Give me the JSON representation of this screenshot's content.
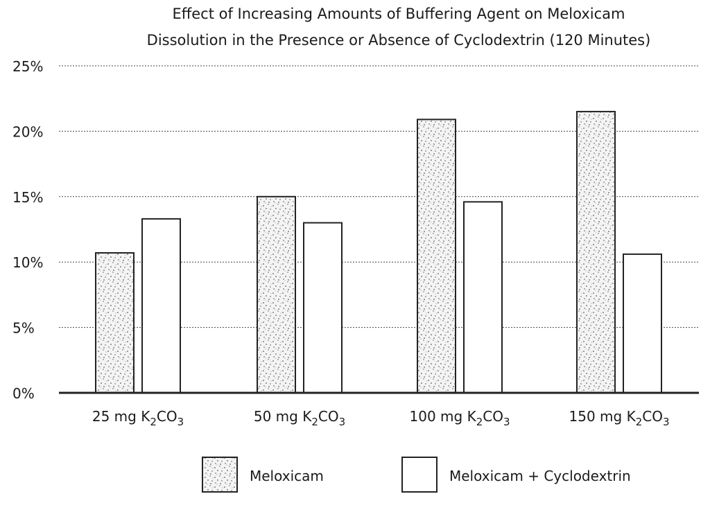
{
  "chart_data": {
    "type": "bar",
    "title": "Effect of Increasing Amounts of Buffering Agent on Meloxicam Dissolution in the Presence or Absence of Cyclodextrin (120 Minutes)",
    "title_lines": [
      "Effect of Increasing Amounts of Buffering Agent on Meloxicam",
      "Dissolution in the Presence or Absence of Cyclodextrin (120 Minutes)"
    ],
    "categories": [
      {
        "pre": "25 mg K",
        "sub1": "2",
        "mid": "CO",
        "sub2": "3"
      },
      {
        "pre": "50 mg K",
        "sub1": "2",
        "mid": "CO",
        "sub2": "3"
      },
      {
        "pre": "100 mg K",
        "sub1": "2",
        "mid": "CO",
        "sub2": "3"
      },
      {
        "pre": "150 mg K",
        "sub1": "2",
        "mid": "CO",
        "sub2": "3"
      }
    ],
    "series": [
      {
        "name": "Meloxicam",
        "pattern": "stipple",
        "values": [
          10.7,
          15.0,
          20.9,
          21.5
        ]
      },
      {
        "name": "Meloxicam + Cyclodextrin",
        "pattern": "solid-white",
        "values": [
          13.3,
          13.0,
          14.6,
          10.6
        ]
      }
    ],
    "yticks": [
      "0%",
      "5%",
      "10%",
      "15%",
      "20%",
      "25%"
    ],
    "ytick_values": [
      0,
      5,
      10,
      15,
      20,
      25
    ],
    "ylim": [
      0,
      25
    ],
    "xlabel": "",
    "ylabel": "",
    "grid": true,
    "legend_position": "bottom"
  }
}
